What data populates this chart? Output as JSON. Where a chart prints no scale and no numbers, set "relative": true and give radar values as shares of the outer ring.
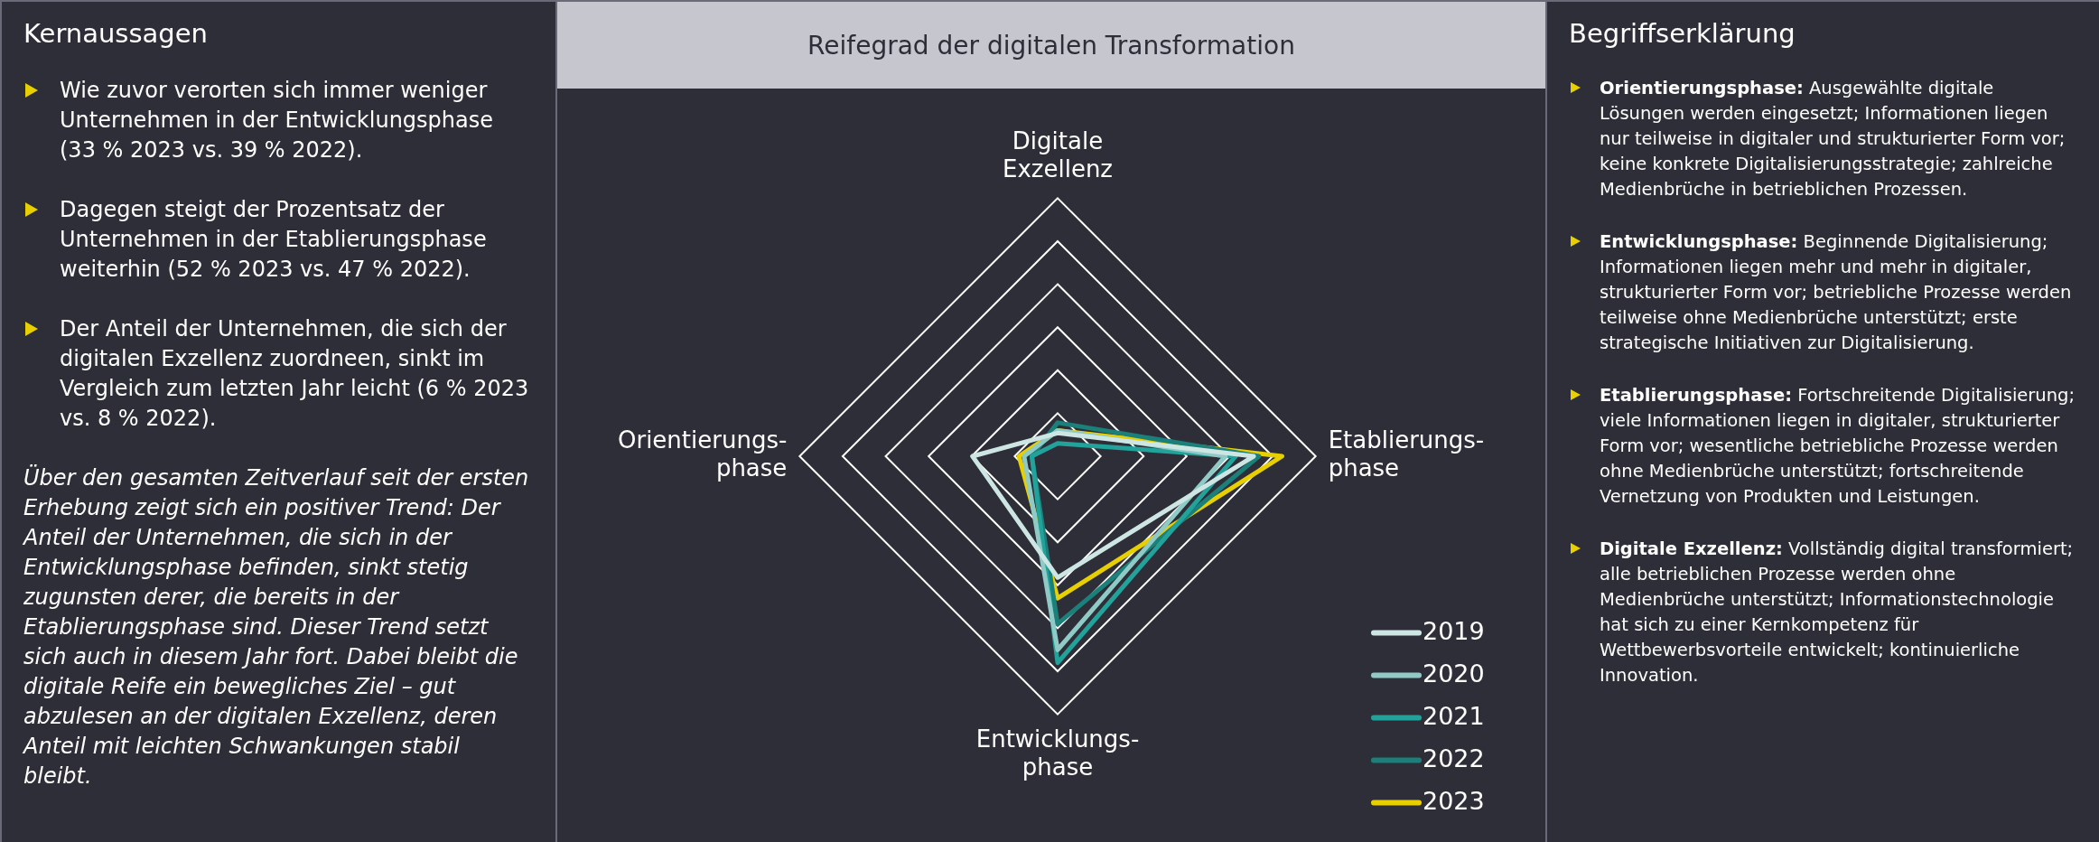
{
  "chart_data": [
    {
      "type": "other",
      "title": "Kernaussagen",
      "annotations": [
        "Wie zuvor verorten sich immer weniger Unternehmen in der Entwicklungsphase (33 % 2023 vs. 39 % 2022).",
        "Dagegen steigt der Prozentsatz der Unternehmen in der Etablierungsphase weiterhin (52 % 2023 vs. 47 % 2022).",
        "Der Anteil der Unternehmen, die sich der  digitalen Exzellenz zuordneen, sinkt im Vergleich zum letzten Jahr leicht (6 % 2023 vs. 8 % 2022).",
        "Über den gesamten Zeitverlauf seit der ersten Erhebung zeigt sich ein positiver Trend: Der Anteil der Unternehmen, die sich in der Entwicklungsphase befinden, sinkt stetig zugunsten derer, die bereits in der Etablierungsphase sind. Dieser Trend setzt sich auch in diesem Jahr fort. Dabei bleibt die digitale Reife ein bewegliches Ziel – gut abzulesen an der digitalen Exzellenz, deren Anteil mit leichten Schwankungen stabil bleibt."
      ]
    },
    {
      "type": "radar",
      "title": "Reifegrad der digitalen Transformation",
      "relative": true,
      "grid": true,
      "legend": "bottom right",
      "marker": "none",
      "categories": [
        "Digitale\nExzellenz",
        "Etablierungs-\nphase",
        "Entwicklungs-\nphase",
        "Orientierungs-\nphase"
      ],
      "series": [
        {
          "name": "2019",
          "color": "#cde6e3",
          "values": [
            0.09,
            0.76,
            0.47,
            0.33
          ]
        },
        {
          "name": "2020",
          "color": "#8fcac6",
          "values": [
            0.1,
            0.65,
            0.75,
            0.13
          ]
        },
        {
          "name": "2021",
          "color": "#21a39b",
          "values": [
            0.05,
            0.69,
            0.8,
            0.1
          ]
        },
        {
          "name": "2022",
          "color": "#1b7f7a",
          "values": [
            0.13,
            0.78,
            0.65,
            0.1
          ]
        },
        {
          "name": "2023",
          "color": "#e8d000",
          "values": [
            0.1,
            0.87,
            0.55,
            0.15
          ]
        }
      ]
    },
    {
      "type": "other",
      "title": "Begriffserklärung",
      "annotations": [
        "Orientierungsphase: Ausgewählte digitale Lösungen werden eingesetzt; Informationen liegen nur teilweise in digitaler und strukturierter Form vor; keine konkrete Digitalisierungsstrategie; zahlreiche Medienbrüche in betrieblichen Prozessen.",
        "Entwicklungsphase: Beginnende Digitalisierung; Informationen liegen mehr und mehr in digitaler, strukturierter Form vor; betriebliche Prozesse werden teilweise ohne Medienbrüche unterstützt; erste strategische Initiativen zur Digitalisierung.",
        "Etablierungsphase: Fortschreitende Digitalisierung; viele Informationen liegen in digitaler, strukturierter Form vor; wesentliche betriebliche Prozesse werden ohne Medienbrüche unterstützt; fortschreitende Vernetzung von Produkten und Leistungen.",
        "Digitale Exzellenz: Vollständig digital transformiert; alle betrieblichen Prozesse werden ohne Medienbrüche unterstützt; Informationstechnologie hat sich zu einer Kernkompetenz für Wettbewerbsvorteile entwickelt; kontinuierliche Innovation."
      ]
    }
  ]
}
